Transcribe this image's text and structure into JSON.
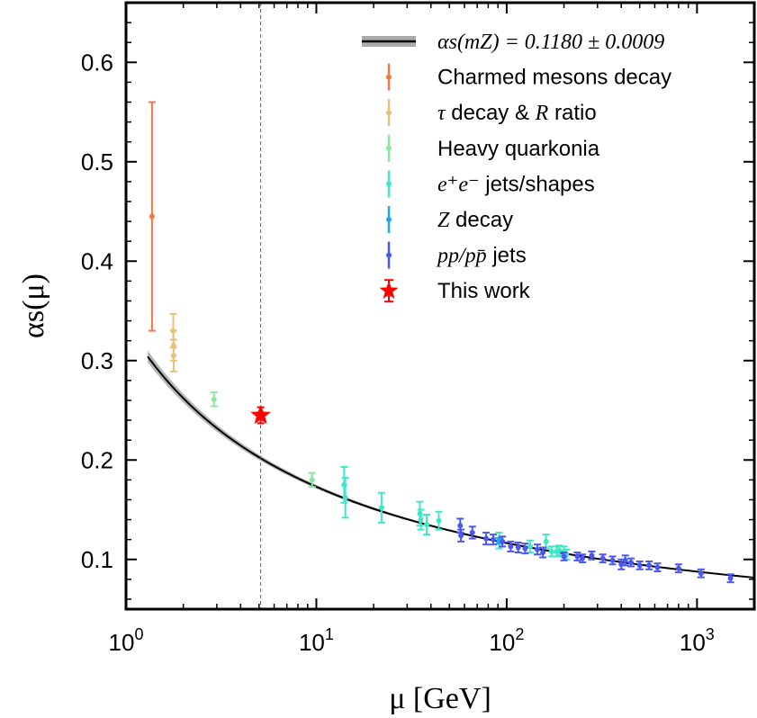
{
  "chart_data": {
    "type": "scatter",
    "x_scale": "log",
    "xlabel": "μ [GeV]",
    "ylabel": "αs(μ)",
    "xlim": [
      1.0,
      2000
    ],
    "ylim": [
      0.05,
      0.66
    ],
    "x_ticks": [
      {
        "value": 1,
        "base": "10",
        "exp": "0"
      },
      {
        "value": 10,
        "base": "10",
        "exp": "1"
      },
      {
        "value": 100,
        "base": "10",
        "exp": "2"
      },
      {
        "value": 1000,
        "base": "10",
        "exp": "3"
      }
    ],
    "y_ticks": [
      {
        "value": 0.1,
        "label": "0.1"
      },
      {
        "value": 0.2,
        "label": "0.2"
      },
      {
        "value": 0.3,
        "label": "0.3"
      },
      {
        "value": 0.4,
        "label": "0.4"
      },
      {
        "value": 0.5,
        "label": "0.5"
      },
      {
        "value": 0.6,
        "label": "0.6"
      }
    ],
    "vertical_line": {
      "x": 5.1,
      "color": "#cc3333",
      "style": "dashed"
    },
    "band": {
      "name": "αs(mZ) = 0.1180 ± 0.0009",
      "alpha_mz": 0.118,
      "uncertainty": 0.0009,
      "mz": 91.19,
      "x_range": [
        1.3,
        2000
      ],
      "line_color": "#000000",
      "band_color": "#aaaaaa"
    },
    "series": [
      {
        "name": "Charmed mesons decay",
        "color": "#f07848",
        "points": [
          {
            "x": 1.37,
            "y": 0.445,
            "err": 0.115
          }
        ]
      },
      {
        "name": "τ decay & R ratio",
        "color": "#e6c27a",
        "points": [
          {
            "x": 1.77,
            "y": 0.33,
            "err": 0.017
          },
          {
            "x": 1.777,
            "y": 0.315,
            "err": 0.015
          },
          {
            "x": 1.78,
            "y": 0.305,
            "err": 0.016
          }
        ]
      },
      {
        "name": "Heavy quarkonia",
        "color": "#8ee6a0",
        "points": [
          {
            "x": 2.9,
            "y": 0.261,
            "err": 0.007
          },
          {
            "x": 9.5,
            "y": 0.18,
            "err": 0.007
          }
        ]
      },
      {
        "name": "e+e− jets/shapes",
        "color": "#40e6c8",
        "points": [
          {
            "x": 14.0,
            "y": 0.175,
            "err": 0.018
          },
          {
            "x": 14.2,
            "y": 0.162,
            "err": 0.02
          },
          {
            "x": 22.0,
            "y": 0.152,
            "err": 0.015
          },
          {
            "x": 35.0,
            "y": 0.146,
            "err": 0.012
          },
          {
            "x": 35.4,
            "y": 0.14,
            "err": 0.01
          },
          {
            "x": 38.0,
            "y": 0.135,
            "err": 0.01
          },
          {
            "x": 44.0,
            "y": 0.139,
            "err": 0.009
          },
          {
            "x": 91.2,
            "y": 0.119,
            "err": 0.008
          },
          {
            "x": 133.0,
            "y": 0.113,
            "err": 0.006
          },
          {
            "x": 161.0,
            "y": 0.118,
            "err": 0.007
          },
          {
            "x": 172.0,
            "y": 0.108,
            "err": 0.005
          },
          {
            "x": 183.0,
            "y": 0.108,
            "err": 0.005
          },
          {
            "x": 189.0,
            "y": 0.109,
            "err": 0.005
          },
          {
            "x": 200.0,
            "y": 0.108,
            "err": 0.005
          },
          {
            "x": 206.0,
            "y": 0.105,
            "err": 0.005
          }
        ]
      },
      {
        "name": "Z decay",
        "color": "#20a8e0",
        "points": [
          {
            "x": 91.19,
            "y": 0.1187,
            "err": 0.003
          }
        ]
      },
      {
        "name": "pp/pp̄ jets",
        "color": "#4a58f0",
        "points": [
          {
            "x": 57.0,
            "y": 0.134,
            "err": 0.007
          },
          {
            "x": 57.5,
            "y": 0.124,
            "err": 0.006
          },
          {
            "x": 66.0,
            "y": 0.127,
            "err": 0.006
          },
          {
            "x": 78.0,
            "y": 0.121,
            "err": 0.006
          },
          {
            "x": 85.0,
            "y": 0.12,
            "err": 0.005
          },
          {
            "x": 95.0,
            "y": 0.118,
            "err": 0.005
          },
          {
            "x": 105.0,
            "y": 0.113,
            "err": 0.005
          },
          {
            "x": 115.0,
            "y": 0.112,
            "err": 0.005
          },
          {
            "x": 125.0,
            "y": 0.111,
            "err": 0.005
          },
          {
            "x": 145.0,
            "y": 0.11,
            "err": 0.005
          },
          {
            "x": 155.0,
            "y": 0.107,
            "err": 0.005
          },
          {
            "x": 200.0,
            "y": 0.103,
            "err": 0.004
          },
          {
            "x": 235.0,
            "y": 0.103,
            "err": 0.004
          },
          {
            "x": 250.0,
            "y": 0.101,
            "err": 0.004
          },
          {
            "x": 280.0,
            "y": 0.104,
            "err": 0.004
          },
          {
            "x": 320.0,
            "y": 0.101,
            "err": 0.004
          },
          {
            "x": 360.0,
            "y": 0.099,
            "err": 0.004
          },
          {
            "x": 400.0,
            "y": 0.095,
            "err": 0.005
          },
          {
            "x": 420.0,
            "y": 0.099,
            "err": 0.005
          },
          {
            "x": 450.0,
            "y": 0.097,
            "err": 0.004
          },
          {
            "x": 500.0,
            "y": 0.094,
            "err": 0.004
          },
          {
            "x": 560.0,
            "y": 0.094,
            "err": 0.004
          },
          {
            "x": 620.0,
            "y": 0.092,
            "err": 0.004
          },
          {
            "x": 800.0,
            "y": 0.091,
            "err": 0.004
          },
          {
            "x": 1050.0,
            "y": 0.086,
            "err": 0.004
          },
          {
            "x": 1500.0,
            "y": 0.081,
            "err": 0.004
          }
        ]
      },
      {
        "name": "This work",
        "color": "#ff0000",
        "marker": "star",
        "points": [
          {
            "x": 5.1,
            "y": 0.245,
            "err": 0.008
          }
        ]
      }
    ],
    "legend": {
      "placement": "top-right",
      "entries": [
        {
          "kind": "band",
          "label_math": "αs(mZ) = 0.1180 ± 0.0009",
          "color": "#000000"
        },
        {
          "kind": "point",
          "label": "Charmed mesons decay",
          "color": "#f07848"
        },
        {
          "kind": "point",
          "label_math": "τ",
          "label": " decay & ",
          "label_math2": "R",
          "label2": " ratio",
          "color": "#e6c27a"
        },
        {
          "kind": "point",
          "label": "Heavy quarkonia",
          "color": "#8ee6a0"
        },
        {
          "kind": "point",
          "label_math": "e⁺e⁻",
          "label": " jets/shapes",
          "color": "#40e6c8"
        },
        {
          "kind": "point",
          "label_math": "Z",
          "label": " decay",
          "color": "#20a8e0"
        },
        {
          "kind": "point",
          "label_math": "pp/pp̄",
          "label": " jets",
          "color": "#4a58f0"
        },
        {
          "kind": "star",
          "label": "This work",
          "color": "#ff0000"
        }
      ]
    }
  }
}
